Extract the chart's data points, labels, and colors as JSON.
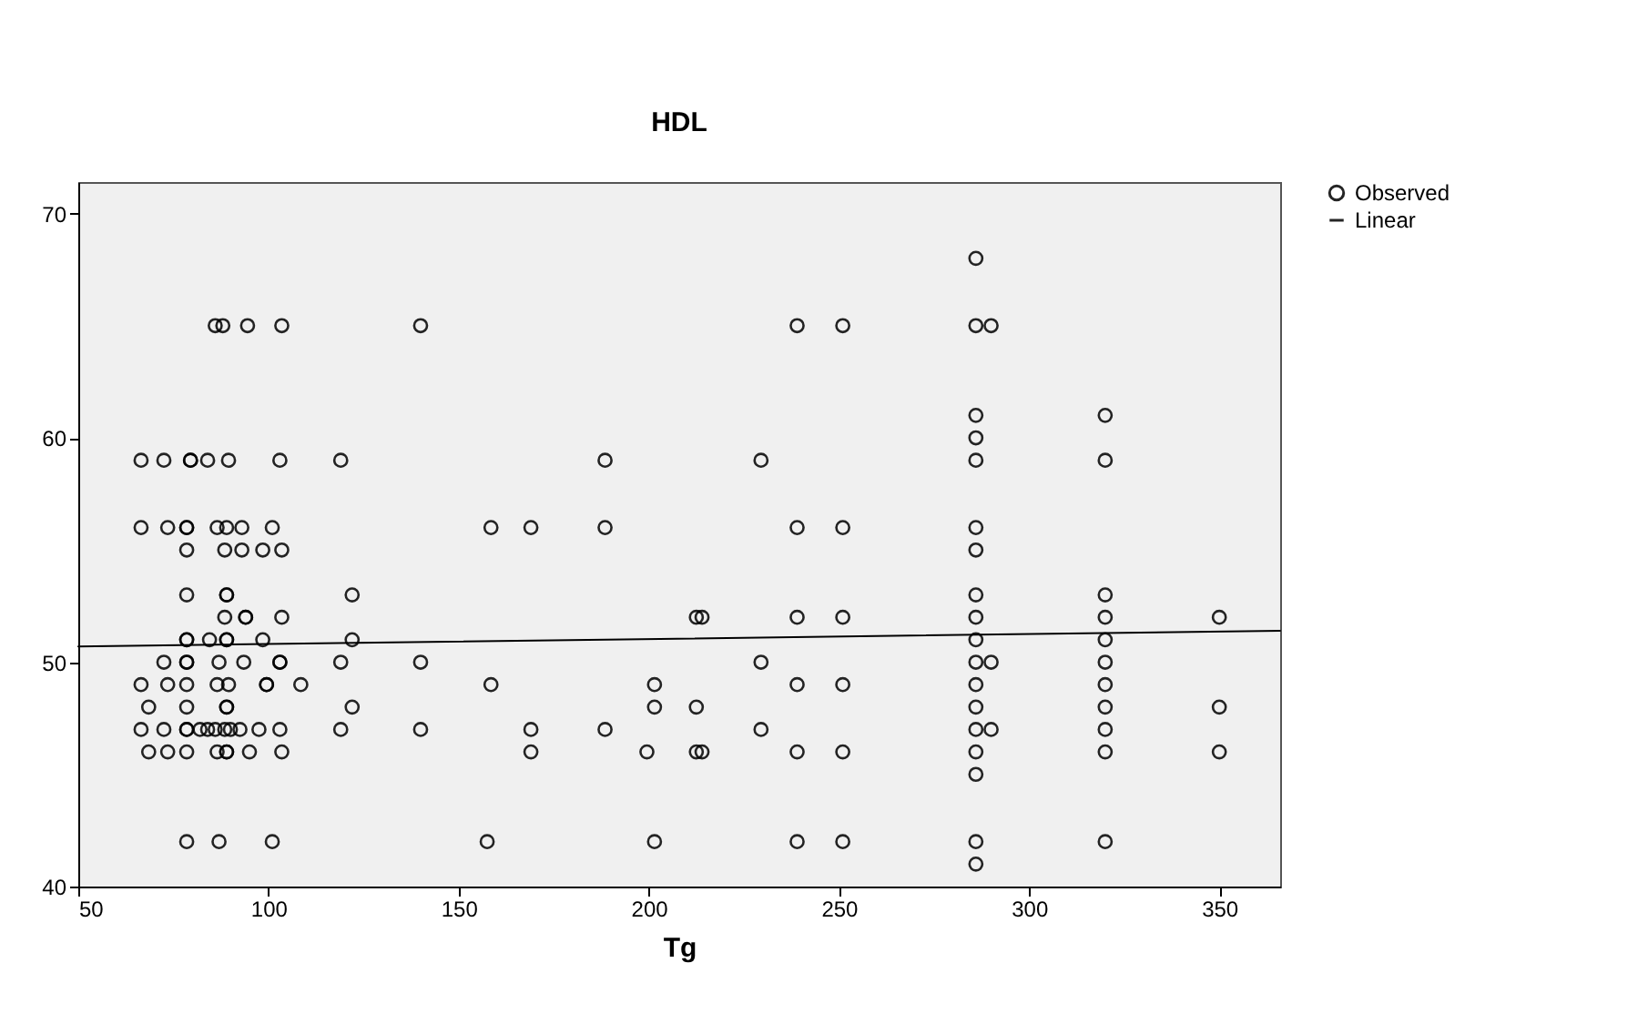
{
  "chart_data": {
    "type": "scatter",
    "title": "HDL",
    "xlabel": "Tg",
    "xlim": [
      50,
      366
    ],
    "ylim": [
      40,
      71.4
    ],
    "xticks": [
      50,
      100,
      150,
      200,
      250,
      300,
      350
    ],
    "yticks": [
      40,
      50,
      60,
      70
    ],
    "grid": false,
    "legend": "top right",
    "series": [
      {
        "name": "Observed",
        "marker": "circle",
        "color": "#000000",
        "x": [
          286,
          86,
          88,
          94.5,
          103.5,
          140,
          239,
          251,
          286,
          290,
          286,
          320,
          286,
          66.5,
          72.5,
          79.5,
          79.5,
          84,
          89.5,
          103,
          119,
          188.5,
          229.5,
          286,
          320,
          66.5,
          73.5,
          78.5,
          78.5,
          86.5,
          89,
          93,
          101,
          158.5,
          169,
          188.5,
          239,
          251,
          286,
          78.5,
          88.5,
          93,
          98.5,
          103.5,
          286,
          78.5,
          89,
          89,
          122,
          286,
          320,
          88.5,
          94,
          94,
          103.5,
          212.5,
          214,
          239,
          251,
          286,
          320,
          350,
          78.5,
          78.5,
          84.5,
          89,
          89,
          98.5,
          122,
          286,
          320,
          72.5,
          78.5,
          78.5,
          87,
          93.5,
          103,
          103,
          119,
          140,
          229.5,
          286,
          290,
          320,
          66.5,
          73.5,
          78.5,
          86.5,
          89.5,
          99.5,
          99.5,
          108.5,
          158.5,
          201.5,
          239,
          251,
          286,
          320,
          68.5,
          78.5,
          89,
          89,
          122,
          201.5,
          212.5,
          286,
          320,
          350,
          66.5,
          72.5,
          78.5,
          78.5,
          82,
          84,
          86,
          88.5,
          90,
          92.5,
          97.5,
          103,
          119,
          140,
          169,
          188.5,
          229.5,
          286,
          290,
          320,
          68.5,
          73.5,
          78.5,
          86.5,
          89,
          89,
          95,
          103.5,
          169,
          199.5,
          212.5,
          214,
          239,
          251,
          286,
          320,
          350,
          286,
          78.5,
          87,
          101,
          157.5,
          201.5,
          239,
          251,
          286,
          320,
          286
        ],
        "values": [
          68,
          65,
          65,
          65,
          65,
          65,
          65,
          65,
          65,
          65,
          61,
          61,
          60,
          59,
          59,
          59,
          59,
          59,
          59,
          59,
          59,
          59,
          59,
          59,
          59,
          56,
          56,
          56,
          56,
          56,
          56,
          56,
          56,
          56,
          56,
          56,
          56,
          56,
          56,
          55,
          55,
          55,
          55,
          55,
          55,
          53,
          53,
          53,
          53,
          53,
          53,
          52,
          52,
          52,
          52,
          52,
          52,
          52,
          52,
          52,
          52,
          52,
          51,
          51,
          51,
          51,
          51,
          51,
          51,
          51,
          51,
          50,
          50,
          50,
          50,
          50,
          50,
          50,
          50,
          50,
          50,
          50,
          50,
          50,
          49,
          49,
          49,
          49,
          49,
          49,
          49,
          49,
          49,
          49,
          49,
          49,
          49,
          49,
          48,
          48,
          48,
          48,
          48,
          48,
          48,
          48,
          48,
          48,
          47,
          47,
          47,
          47,
          47,
          47,
          47,
          47,
          47,
          47,
          47,
          47,
          47,
          47,
          47,
          47,
          47,
          47,
          47,
          47,
          46,
          46,
          46,
          46,
          46,
          46,
          46,
          46,
          46,
          46,
          46,
          46,
          46,
          46,
          46,
          46,
          46,
          45,
          42,
          42,
          42,
          42,
          42,
          42,
          42,
          42,
          42,
          41
        ]
      },
      {
        "name": "Linear",
        "type": "line",
        "color": "#000000",
        "x": [
          50,
          366
        ],
        "values": [
          50.7,
          51.4
        ]
      }
    ]
  }
}
